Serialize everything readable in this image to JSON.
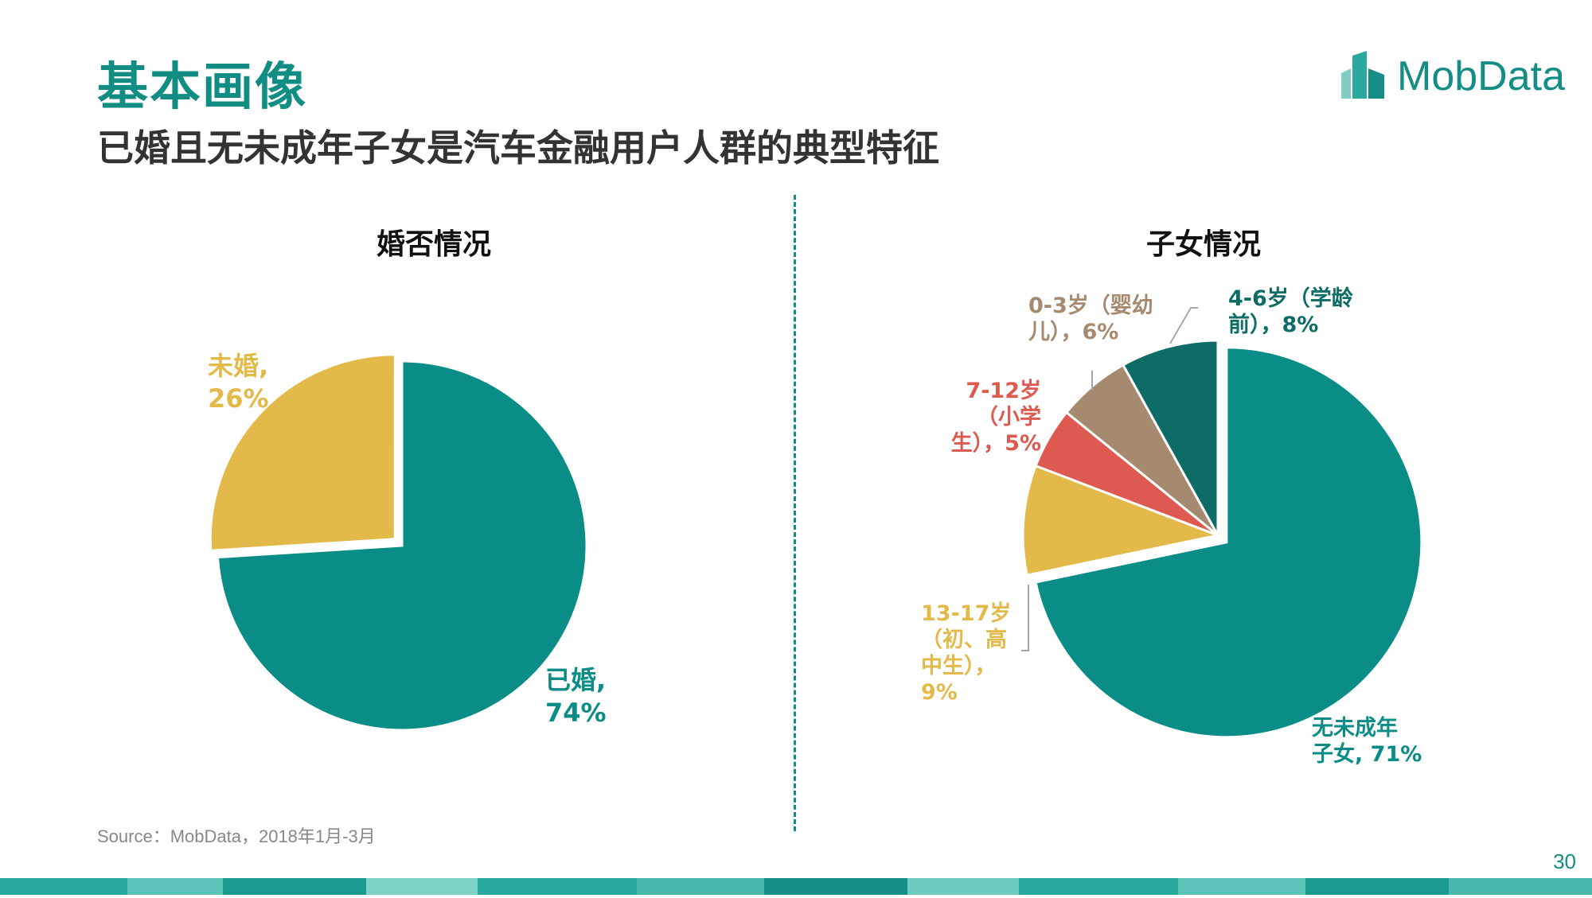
{
  "header": {
    "title": "基本画像",
    "subtitle": "已婚且无未成年子女是汽车金融用户人群的典型特征"
  },
  "logo": {
    "text": "MobData"
  },
  "footer": {
    "source": "Source：MobData，2018年1月-3月",
    "page_number": "30"
  },
  "colors": {
    "brand": "#128d84",
    "teal": "#0a8d86",
    "yellow": "#e3ba4a",
    "red": "#de5a50",
    "brown": "#a58a6f",
    "dark_teal": "#0d6d66"
  },
  "chart_data": [
    {
      "type": "pie",
      "title": "婚否情况",
      "slices": [
        {
          "name": "已婚",
          "label_line1": "已婚,",
          "label_line2": "74%",
          "value": 74,
          "color": "#0a8d86"
        },
        {
          "name": "未婚",
          "label_line1": "未婚,",
          "label_line2": "26%",
          "value": 26,
          "color": "#e3ba4a"
        }
      ]
    },
    {
      "type": "pie",
      "title": "子女情况",
      "slices": [
        {
          "name": "无未成年子女",
          "lines": [
            "无未成年",
            "子女, 71%"
          ],
          "value": 71,
          "color": "#0a8d86"
        },
        {
          "name": "13-17岁（初、高中生）",
          "lines": [
            "13-17岁",
            "（初、高",
            "中生），",
            "9%"
          ],
          "value": 9,
          "color": "#e3ba4a"
        },
        {
          "name": "7-12岁（小学生）",
          "lines": [
            "7-12岁",
            "（小学",
            "生），5%"
          ],
          "value": 5,
          "color": "#de5a50"
        },
        {
          "name": "0-3岁（婴幼儿）",
          "lines": [
            "0-3岁（婴幼",
            "儿），6%"
          ],
          "value": 6,
          "color": "#a58a6f"
        },
        {
          "name": "4-6岁（学龄前）",
          "lines": [
            "4-6岁（学龄",
            "前），8%"
          ],
          "value": 8,
          "color": "#0d6d66"
        }
      ]
    }
  ]
}
